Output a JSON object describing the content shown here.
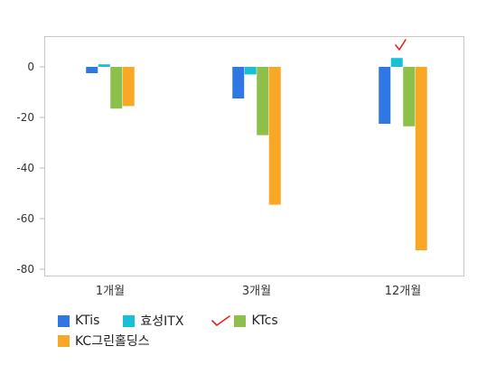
{
  "chart_data": {
    "type": "bar",
    "categories": [
      "1개월",
      "3개월",
      "12개월"
    ],
    "series": [
      {
        "name": "KTis",
        "color": "#2f78e3",
        "values": [
          -2.5,
          -12.5,
          -22.5
        ]
      },
      {
        "name": "효성ITX",
        "color": "#17c0d6",
        "values": [
          1.0,
          -3.0,
          3.5
        ]
      },
      {
        "name": "KTcs",
        "color": "#8dc04a",
        "values": [
          -16.5,
          -27.0,
          -23.5
        ]
      },
      {
        "name": "KC그린홀딩스",
        "color": "#f9a825",
        "values": [
          -15.5,
          -54.5,
          -72.5
        ]
      }
    ],
    "ylim": [
      -82,
      12
    ],
    "yticks": [
      0,
      -20,
      -40,
      -60,
      -80
    ],
    "ytick_labels": [
      "0",
      "-20",
      "-40",
      "-60",
      "-80"
    ],
    "grid": false,
    "legend": "bottom-left"
  },
  "annotations": {
    "mark_color": "#e8221e"
  }
}
